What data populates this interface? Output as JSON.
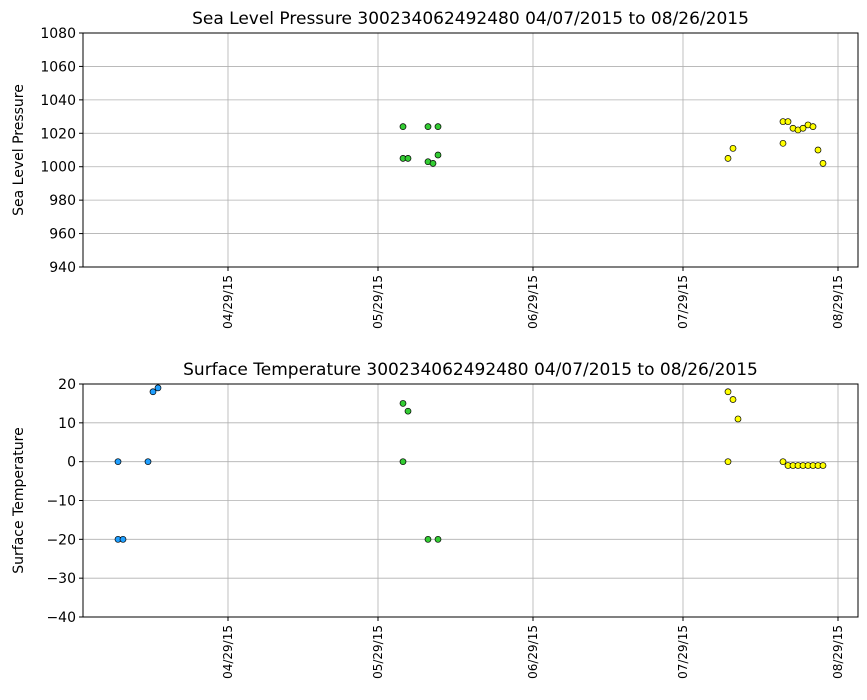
{
  "chart_data": [
    {
      "type": "scatter",
      "title": "Sea Level Pressure 300234062492480  04/07/2015 to 08/26/2015",
      "ylabel": "Sea Level Pressure",
      "xlim": [
        "2015-03-31",
        "2015-09-02"
      ],
      "xticks": [
        {
          "value": "2015-04-29",
          "label": "04/29/15"
        },
        {
          "value": "2015-05-29",
          "label": "05/29/15"
        },
        {
          "value": "2015-06-29",
          "label": "06/29/15"
        },
        {
          "value": "2015-07-29",
          "label": "07/29/15"
        },
        {
          "value": "2015-08-29",
          "label": "08/29/15"
        }
      ],
      "ylim": [
        940,
        1080
      ],
      "yticks": [
        940,
        960,
        980,
        1000,
        1020,
        1040,
        1060,
        1080
      ],
      "grid": true,
      "series": [
        {
          "color": "#33cc33",
          "x": [
            "2015-06-03",
            "2015-06-03",
            "2015-06-04",
            "2015-06-08",
            "2015-06-08",
            "2015-06-09",
            "2015-06-10",
            "2015-06-10"
          ],
          "values": [
            1024,
            1005,
            1005,
            1024,
            1003,
            1002,
            1024,
            1007
          ]
        },
        {
          "color": "#ffff00",
          "x": [
            "2015-08-07",
            "2015-08-08",
            "2015-08-18",
            "2015-08-18",
            "2015-08-19",
            "2015-08-20",
            "2015-08-21",
            "2015-08-22",
            "2015-08-23",
            "2015-08-24",
            "2015-08-25",
            "2015-08-26"
          ],
          "values": [
            1005,
            1011,
            1014,
            1027,
            1027,
            1023,
            1022,
            1023,
            1025,
            1024,
            1010,
            1002
          ]
        }
      ]
    },
    {
      "type": "scatter",
      "title": "Surface Temperature 300234062492480  04/07/2015 to 08/26/2015",
      "ylabel": "Surface Temperature",
      "xlim": [
        "2015-03-31",
        "2015-09-02"
      ],
      "xticks": [
        {
          "value": "2015-04-29",
          "label": "04/29/15"
        },
        {
          "value": "2015-05-29",
          "label": "05/29/15"
        },
        {
          "value": "2015-06-29",
          "label": "06/29/15"
        },
        {
          "value": "2015-07-29",
          "label": "07/29/15"
        },
        {
          "value": "2015-08-29",
          "label": "08/29/15"
        }
      ],
      "ylim": [
        -40,
        20
      ],
      "yticks": [
        {
          "value": -40,
          "label": "−40"
        },
        {
          "value": -30,
          "label": "−30"
        },
        {
          "value": -20,
          "label": "−20"
        },
        {
          "value": -10,
          "label": "−10"
        },
        0,
        10,
        20
      ],
      "grid": true,
      "series": [
        {
          "color": "#1f9fff",
          "x": [
            "2015-04-07",
            "2015-04-07",
            "2015-04-08",
            "2015-04-13",
            "2015-04-14",
            "2015-04-15"
          ],
          "values": [
            0,
            -20,
            -20,
            0,
            18,
            19
          ]
        },
        {
          "color": "#33cc33",
          "x": [
            "2015-06-03",
            "2015-06-03",
            "2015-06-04",
            "2015-06-08",
            "2015-06-10"
          ],
          "values": [
            15,
            0,
            13,
            -20,
            -20
          ]
        },
        {
          "color": "#ffff00",
          "x": [
            "2015-08-07",
            "2015-08-07",
            "2015-08-08",
            "2015-08-09",
            "2015-08-18",
            "2015-08-19",
            "2015-08-20",
            "2015-08-21",
            "2015-08-22",
            "2015-08-23",
            "2015-08-24",
            "2015-08-25",
            "2015-08-26"
          ],
          "values": [
            0,
            18,
            16,
            11,
            0,
            -1,
            -1,
            -1,
            -1,
            -1,
            -1,
            -1,
            -1
          ]
        }
      ]
    }
  ]
}
